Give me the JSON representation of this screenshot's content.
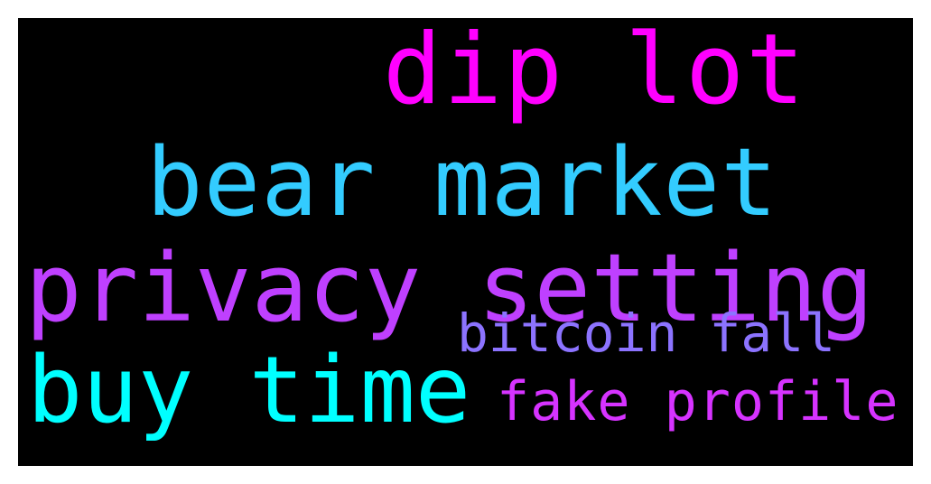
{
  "cloud": {
    "background": "#000000",
    "words": [
      {
        "text": "dip lot",
        "color": "#ff00ff"
      },
      {
        "text": "bear market",
        "color": "#33ccff"
      },
      {
        "text": "privacy setting",
        "color": "#bf40ff"
      },
      {
        "text": "bitcoin fall",
        "color": "#8c73ff"
      },
      {
        "text": "buy time",
        "color": "#00ffff"
      },
      {
        "text": "fake profile",
        "color": "#d633ff"
      }
    ]
  }
}
